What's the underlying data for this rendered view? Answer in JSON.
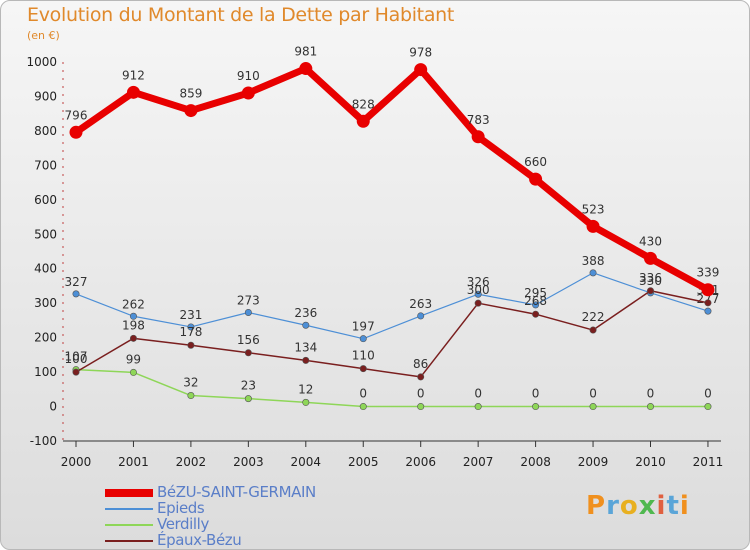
{
  "title": "Evolution du Montant de la Dette par Habitant",
  "unit": "(en €)",
  "logo": "Proxiti",
  "chart_data": {
    "type": "line",
    "title": "Evolution du Montant de la Dette par Habitant",
    "ylabel": "(en €)",
    "xlabel": "",
    "ylim": [
      -100,
      1000
    ],
    "yticks": [
      -100,
      0,
      100,
      200,
      300,
      400,
      500,
      600,
      700,
      800,
      900,
      1000
    ],
    "x": [
      "2000",
      "2001",
      "2002",
      "2003",
      "2004",
      "2005",
      "2006",
      "2007",
      "2008",
      "2009",
      "2010",
      "2011"
    ],
    "grid": false,
    "legend_position": "bottom-left",
    "series": [
      {
        "name": "BéZU-SAINT-GERMAIN",
        "color": "#e80000",
        "values": [
          796,
          912,
          859,
          910,
          981,
          828,
          978,
          783,
          660,
          523,
          430,
          339
        ]
      },
      {
        "name": "Epieds",
        "color": "#4d8fd6",
        "values": [
          327,
          262,
          231,
          273,
          236,
          197,
          263,
          326,
          295,
          388,
          330,
          277
        ]
      },
      {
        "name": "Verdilly",
        "color": "#8ed658",
        "values": [
          107,
          99,
          32,
          23,
          12,
          0,
          0,
          0,
          0,
          0,
          0,
          0
        ]
      },
      {
        "name": "Épaux-Bézu",
        "color": "#7a1f1f",
        "values": [
          100,
          198,
          178,
          156,
          134,
          110,
          86,
          300,
          268,
          222,
          336,
          301
        ]
      }
    ]
  }
}
